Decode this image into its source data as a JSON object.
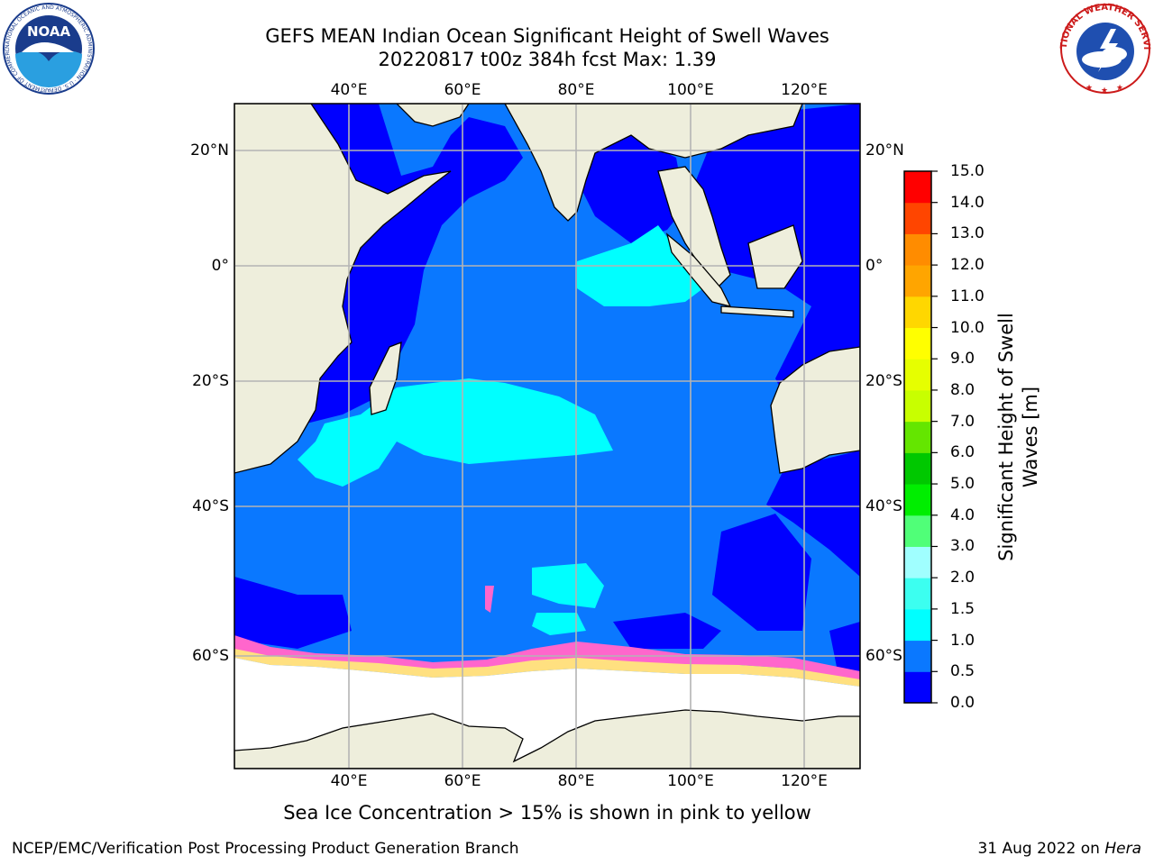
{
  "header": {
    "title_line1": "GEFS MEAN Indian Ocean Significant Height of Swell Waves",
    "title_line2": "20220817 t00z 384h fcst   Max: 1.39"
  },
  "logos": {
    "noaa": "NOAA",
    "noaa_ring": "NATIONAL OCEANIC AND ATMOSPHERIC ADMINISTRATION · U.S. DEPARTMENT OF COMMERCE",
    "nws_ring": "NATIONAL WEATHER SERVICE"
  },
  "map": {
    "lon_labels": [
      "40°E",
      "60°E",
      "80°E",
      "100°E",
      "120°E"
    ],
    "lat_labels": [
      "20°N",
      "0°",
      "20°S",
      "40°S",
      "60°S"
    ],
    "extent": {
      "lon_min": 20,
      "lon_max": 130,
      "lat_min": -73,
      "lat_max": 28
    },
    "colors": {
      "land": "#eeeedc",
      "ice_shelf": "#ffffff",
      "grid": "#b4b4b4"
    }
  },
  "colorbar": {
    "title": "Significant Height of Swell Waves [m]",
    "levels": [
      "0.0",
      "0.5",
      "1.0",
      "1.5",
      "2.0",
      "3.0",
      "4.0",
      "5.0",
      "6.0",
      "7.0",
      "8.0",
      "9.0",
      "10.0",
      "11.0",
      "12.0",
      "13.0",
      "14.0",
      "15.0"
    ],
    "colors": [
      "#0000ff",
      "#0a78ff",
      "#00ffff",
      "#3cfff0",
      "#a0ffff",
      "#50ff78",
      "#00ee00",
      "#00c800",
      "#64e600",
      "#c8ff00",
      "#e6ff00",
      "#ffff00",
      "#ffd700",
      "#ffa500",
      "#ff8c00",
      "#ff4500",
      "#ff0000"
    ]
  },
  "note": "Sea Ice Concentration > 15% is shown in pink to yellow",
  "footer": {
    "org": "NCEP/EMC/Verification Post Processing Product Generation Branch",
    "date": "31 Aug 2022 on",
    "host": "Hera"
  }
}
